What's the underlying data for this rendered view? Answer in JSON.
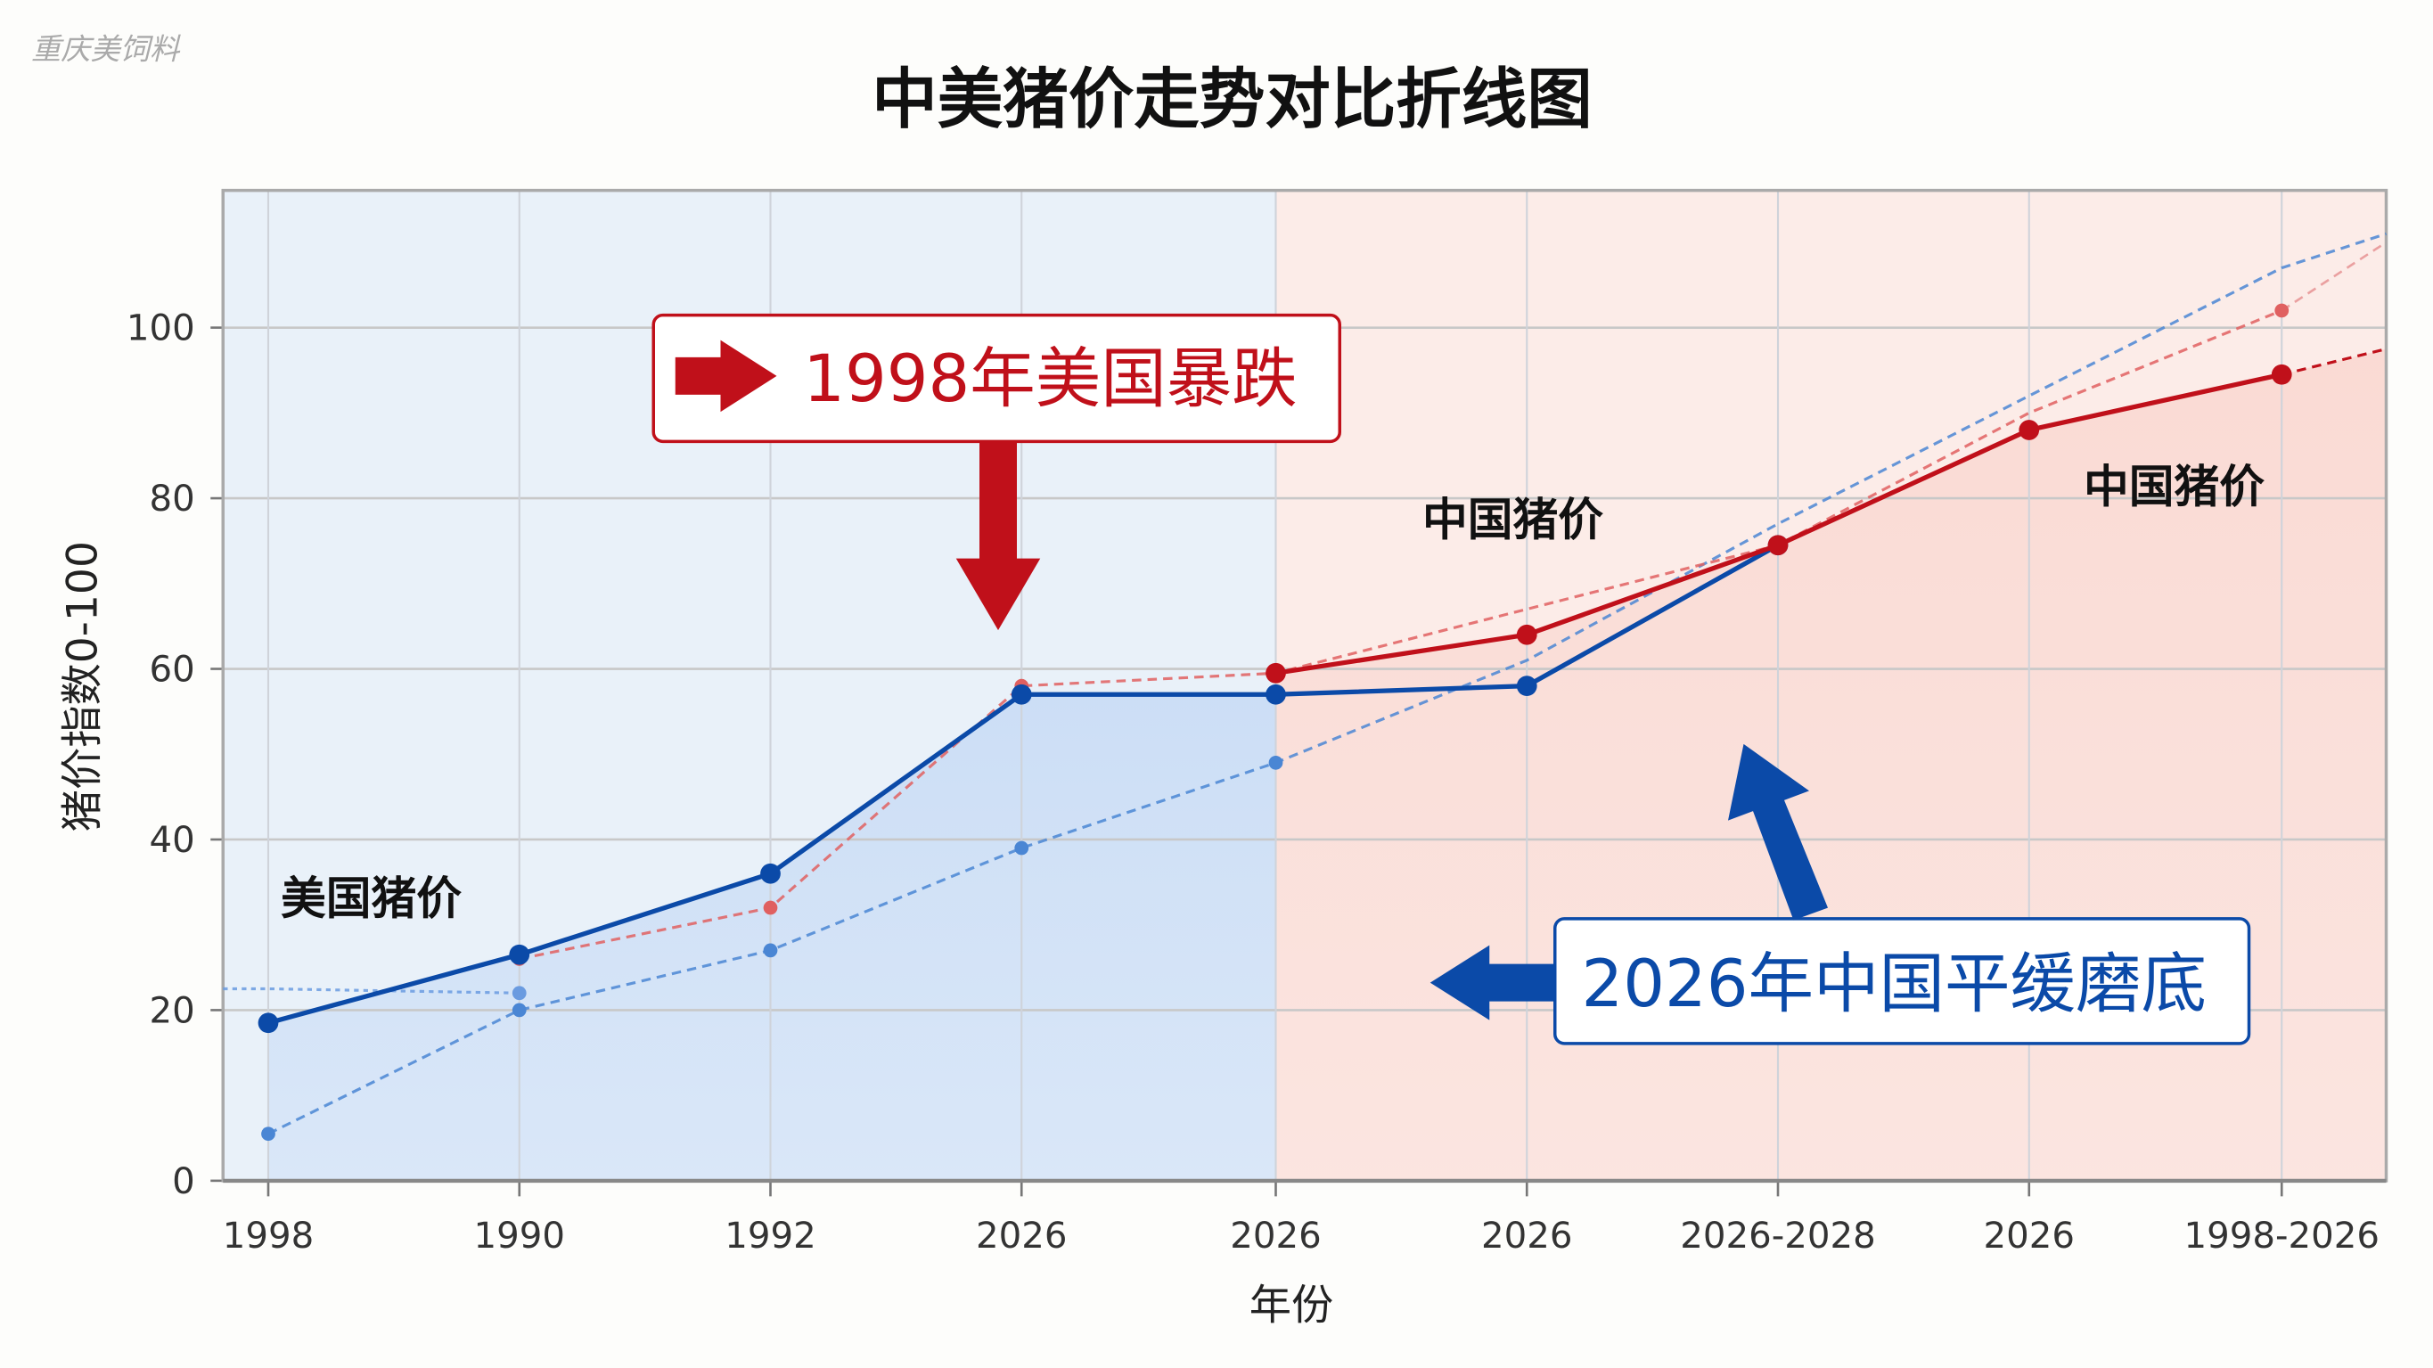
{
  "watermark": "重庆美饲料",
  "chart_data": {
    "type": "line",
    "title": "中美猪价走势对比折线图",
    "xlabel": "年份",
    "ylabel": "猪价指数0-100",
    "categories": [
      "1998",
      "1990",
      "1992",
      "2026",
      "2026",
      "2026",
      "2026-2028",
      "2026",
      "1998-2026"
    ],
    "y_ticks": [
      "0",
      "20",
      "40",
      "60",
      "80",
      "100"
    ],
    "ylim": [
      0,
      115
    ],
    "grid": true,
    "series": [
      {
        "style": "solid",
        "color": "#0b4aa8",
        "values": [
          18.5,
          26.5,
          36,
          57,
          57,
          58,
          74.5,
          null,
          null
        ]
      },
      {
        "style": "solid",
        "color": "#c0101a",
        "values": [
          null,
          null,
          null,
          null,
          59.5,
          64,
          74.5,
          88,
          94.5
        ]
      },
      {
        "style": "dashed",
        "color": "#e06060",
        "values": [
          null,
          26,
          32,
          58,
          59.5,
          null,
          74.5,
          90,
          102
        ]
      },
      {
        "style": "dashed",
        "color": "#4a86d4",
        "values": [
          5.5,
          20,
          27,
          39,
          49,
          61,
          77,
          92,
          107
        ]
      },
      {
        "style": "dotted",
        "color": "#6a9be0",
        "values": [
          22.5,
          22,
          null,
          null,
          null,
          null,
          null,
          null,
          null
        ]
      }
    ],
    "regions": [
      {
        "from": "1998",
        "to": "2026",
        "color": "#dce9f8"
      },
      {
        "from": "2026",
        "to": "1998-2026",
        "color": "#fbe4df"
      }
    ],
    "annotations": [
      {
        "text": "1998年美国暴跌",
        "color": "#c0101a"
      },
      {
        "text": "2026年中国平缓磨底",
        "color": "#0b4aa8"
      },
      {
        "text": "美国猪价"
      },
      {
        "text": "中国猪价"
      },
      {
        "text": "中国猪价"
      }
    ]
  }
}
